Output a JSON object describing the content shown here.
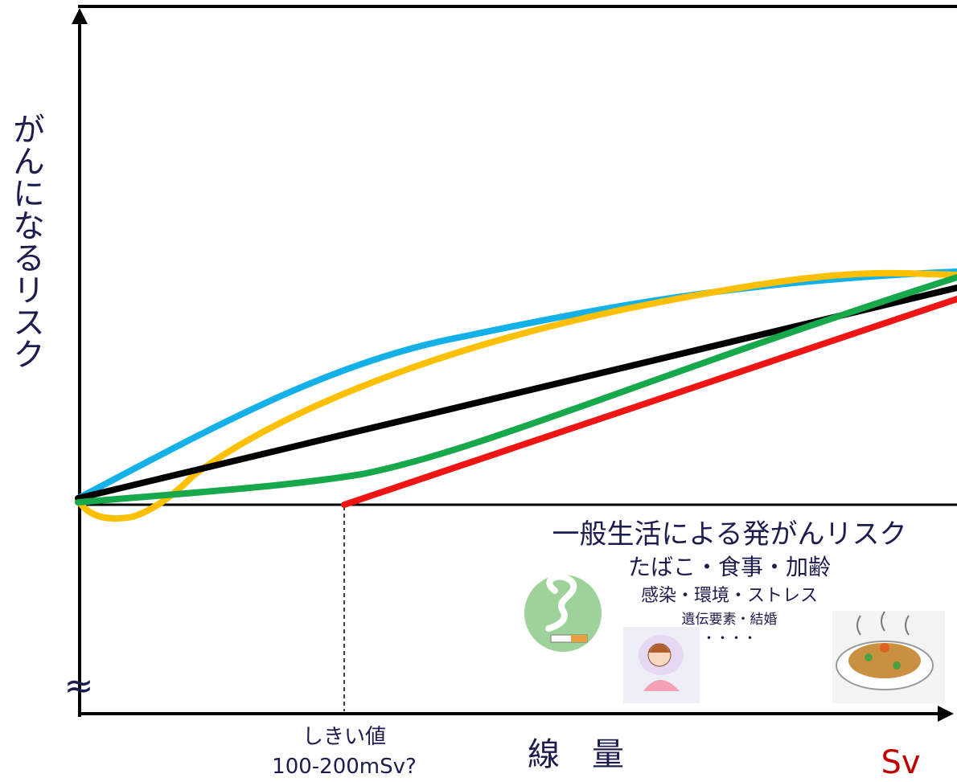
{
  "y_axis_label": "がんになるリスク",
  "approx_symbol": "≈",
  "threshold": {
    "label": "しきい値",
    "range": "100-200mSv?"
  },
  "x_axis_label": "線　量",
  "unit": "Sv",
  "general_risk": {
    "title": "一般生活による発がんリスク",
    "lines": [
      "たばこ・食事・加齢",
      "感染・環境・ストレス",
      "遺伝要素・結婚",
      "・・・・"
    ]
  }
}
